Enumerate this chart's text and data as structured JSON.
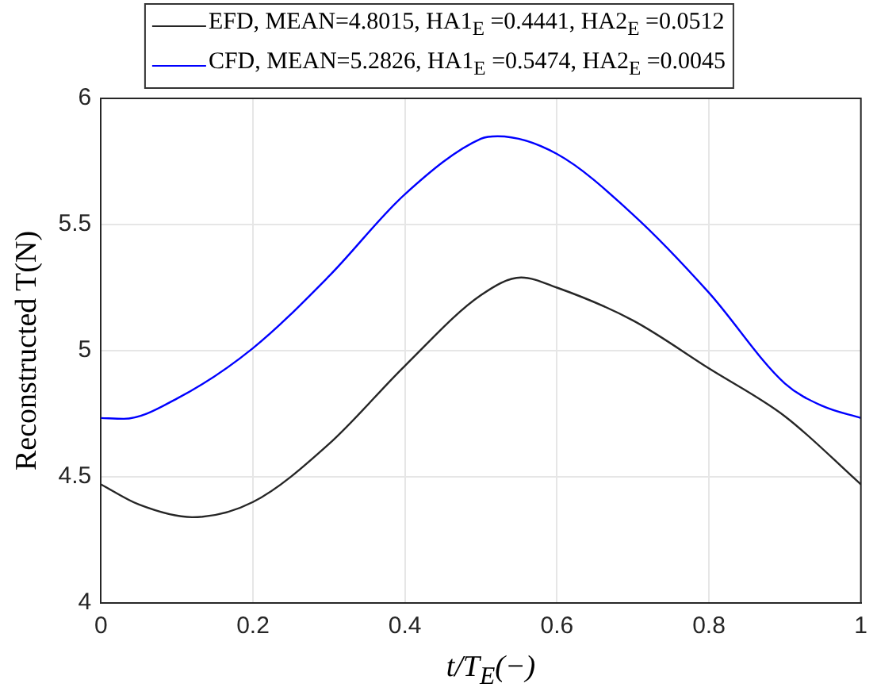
{
  "chart_data": {
    "type": "line",
    "xlabel": "t/T$_{E}$(−)",
    "ylabel": "Reconstructed T(N)",
    "xlim": [
      0,
      1
    ],
    "xticks": [
      0,
      0.2,
      0.4,
      0.6,
      0.8,
      1
    ],
    "ylim": [
      4,
      6
    ],
    "yticks": [
      4,
      4.5,
      5,
      5.5,
      6
    ],
    "grid": true,
    "legend": "top",
    "marker": "none",
    "line_style": "solid",
    "series": [
      {
        "name": "EFD, MEAN=4.8015, HA1$_{E}$ =0.4441, HA2$_{E}$ =0.0512",
        "color": "#262626",
        "x": [
          0,
          0.05,
          0.12,
          0.2,
          0.3,
          0.4,
          0.5,
          0.553,
          0.6,
          0.7,
          0.8,
          0.9,
          1
        ],
        "values": [
          4.47,
          4.39,
          4.34,
          4.4,
          4.63,
          4.94,
          5.22,
          5.29,
          5.25,
          5.12,
          4.93,
          4.74,
          4.47
        ]
      },
      {
        "name": "CFD, MEAN=5.2826, HA1$_{E}$ =0.5474, HA2$_{E}$ =0.0045",
        "color": "#0000ff",
        "x": [
          0,
          0.03,
          0.1,
          0.2,
          0.3,
          0.4,
          0.5,
          0.522,
          0.6,
          0.7,
          0.8,
          0.9,
          0.95,
          1
        ],
        "values": [
          4.733,
          4.73,
          4.81,
          5.01,
          5.295,
          5.62,
          5.84,
          5.85,
          5.78,
          5.54,
          5.23,
          4.87,
          4.78,
          4.733
        ]
      }
    ]
  }
}
